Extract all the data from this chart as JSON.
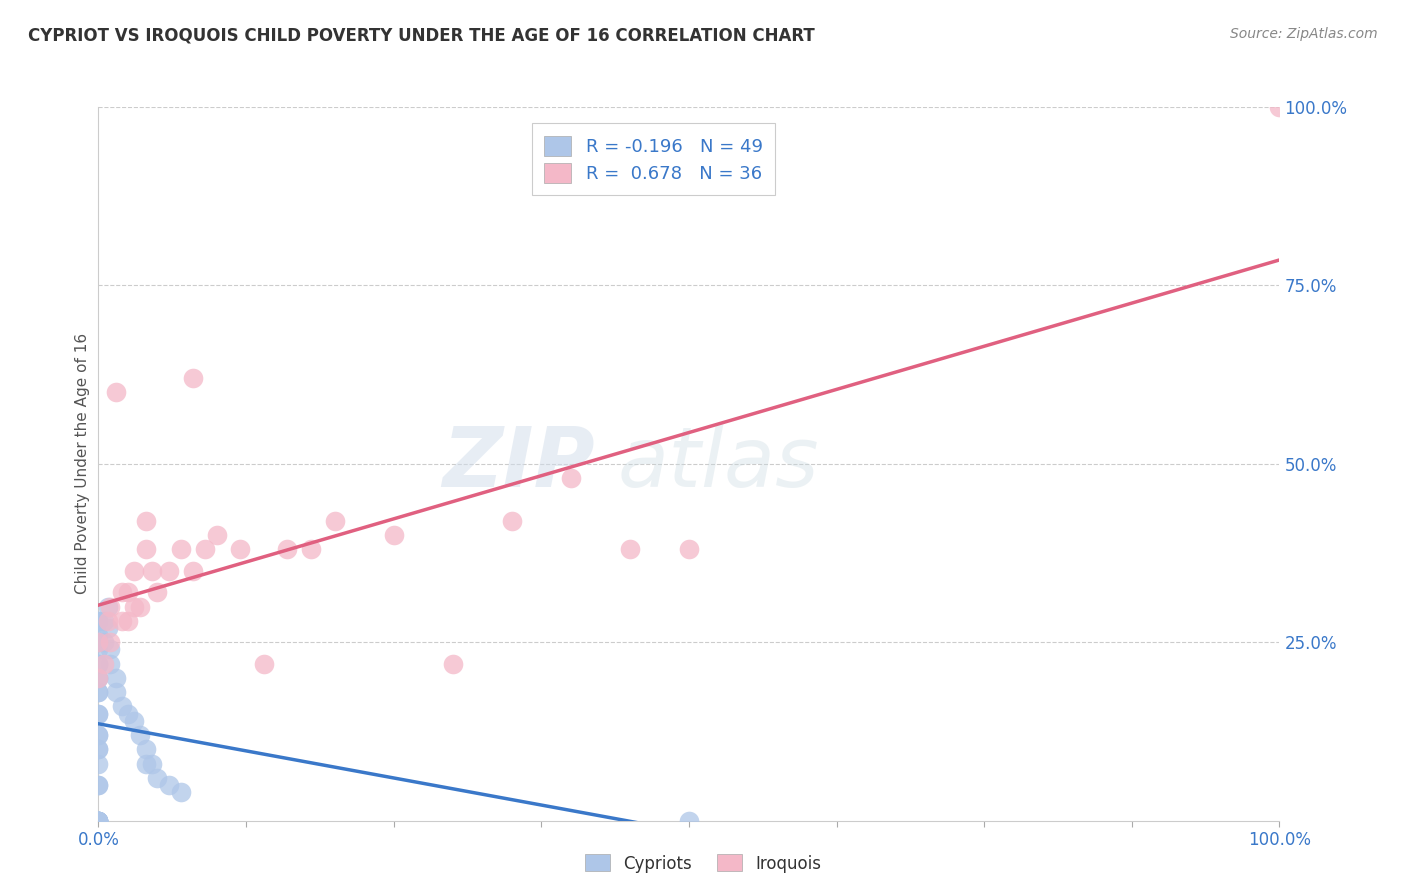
{
  "title": "CYPRIOT VS IROQUOIS CHILD POVERTY UNDER THE AGE OF 16 CORRELATION CHART",
  "source": "Source: ZipAtlas.com",
  "ylabel": "Child Poverty Under the Age of 16",
  "cypriot_color": "#aec6e8",
  "cypriot_line_color": "#3a78c9",
  "iroquois_color": "#f4b8c8",
  "iroquois_line_color": "#e06080",
  "watermark_zip": "ZIP",
  "watermark_atlas": "atlas",
  "ytick_labels": [
    "25.0%",
    "50.0%",
    "75.0%",
    "100.0%"
  ],
  "ytick_values": [
    0.25,
    0.5,
    0.75,
    1.0
  ],
  "cypriot_x": [
    0.0,
    0.0,
    0.0,
    0.0,
    0.0,
    0.0,
    0.0,
    0.0,
    0.0,
    0.0,
    0.0,
    0.0,
    0.0,
    0.0,
    0.0,
    0.0,
    0.0,
    0.0,
    0.0,
    0.0,
    0.0,
    0.0,
    0.0,
    0.0,
    0.0,
    0.0,
    0.0,
    0.0,
    0.0,
    0.0,
    0.005,
    0.005,
    0.008,
    0.008,
    0.01,
    0.01,
    0.015,
    0.015,
    0.02,
    0.025,
    0.03,
    0.035,
    0.04,
    0.04,
    0.045,
    0.05,
    0.06,
    0.07,
    0.5
  ],
  "cypriot_y": [
    0.0,
    0.0,
    0.0,
    0.0,
    0.0,
    0.0,
    0.0,
    0.0,
    0.0,
    0.0,
    0.05,
    0.08,
    0.1,
    0.12,
    0.15,
    0.18,
    0.2,
    0.22,
    0.24,
    0.26,
    0.28,
    0.28,
    0.25,
    0.22,
    0.2,
    0.18,
    0.15,
    0.12,
    0.1,
    0.05,
    0.28,
    0.25,
    0.3,
    0.27,
    0.24,
    0.22,
    0.2,
    0.18,
    0.16,
    0.15,
    0.14,
    0.12,
    0.1,
    0.08,
    0.08,
    0.06,
    0.05,
    0.04,
    0.0
  ],
  "iroquois_x": [
    0.0,
    0.0,
    0.005,
    0.008,
    0.01,
    0.01,
    0.015,
    0.02,
    0.02,
    0.025,
    0.025,
    0.03,
    0.03,
    0.035,
    0.04,
    0.04,
    0.045,
    0.05,
    0.06,
    0.07,
    0.08,
    0.08,
    0.09,
    0.1,
    0.12,
    0.14,
    0.16,
    0.18,
    0.2,
    0.25,
    0.3,
    0.35,
    0.4,
    0.45,
    0.5,
    1.0
  ],
  "iroquois_y": [
    0.2,
    0.25,
    0.22,
    0.28,
    0.25,
    0.3,
    0.6,
    0.28,
    0.32,
    0.28,
    0.32,
    0.3,
    0.35,
    0.3,
    0.38,
    0.42,
    0.35,
    0.32,
    0.35,
    0.38,
    0.35,
    0.62,
    0.38,
    0.4,
    0.38,
    0.22,
    0.38,
    0.38,
    0.42,
    0.4,
    0.22,
    0.42,
    0.48,
    0.38,
    0.38,
    1.0
  ]
}
